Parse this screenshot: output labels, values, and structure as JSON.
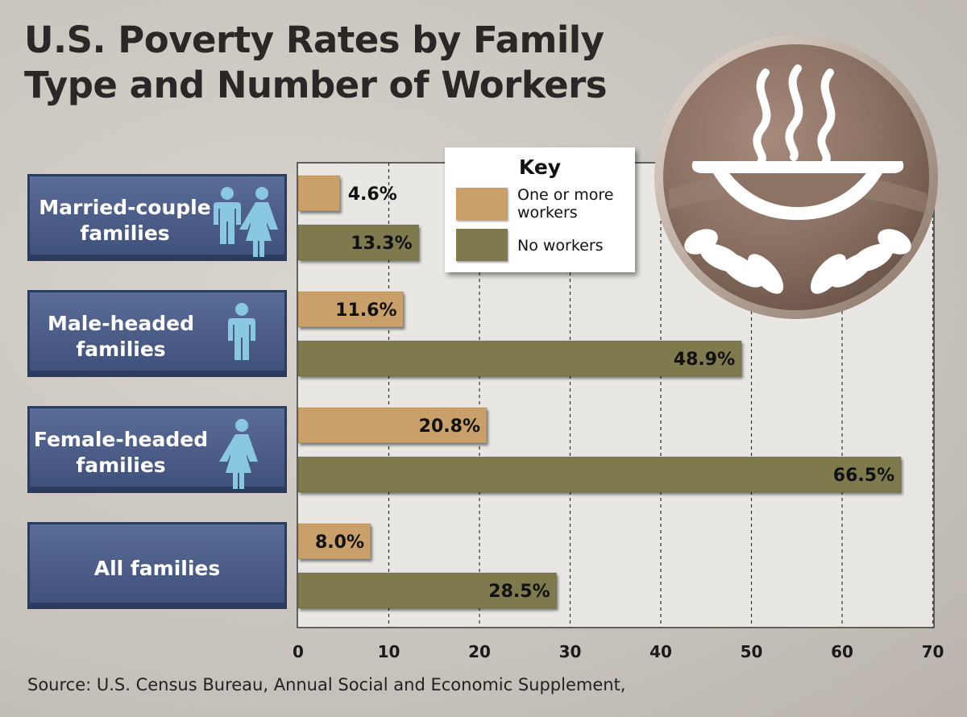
{
  "title": {
    "line1": "U.S. Poverty Rates by Family",
    "line2": "Type and Number of Workers"
  },
  "source": "Source: U.S. Census Bureau, Annual Social and Economic Supplement,",
  "key": {
    "title": "Key",
    "one_or_more": "One or more workers",
    "no_workers": "No workers"
  },
  "colors": {
    "one_or_more": "#c9a069",
    "no_workers": "#7f7a4e",
    "category_box": "#4a5c87",
    "category_box_edge": "#2c3a5e",
    "person_icon": "#89c8e0",
    "plot_bg": "#e9e7e3",
    "emblem": "#8c7365"
  },
  "icons": [
    "man-icon",
    "woman-icon",
    "soup-bowl-hands-icon"
  ],
  "chart_data": {
    "type": "bar",
    "orientation": "horizontal",
    "categories": [
      {
        "label": "Married-couple families",
        "line1": "Married-couple",
        "line2": "families",
        "icons": [
          "man",
          "woman"
        ]
      },
      {
        "label": "Male-headed families",
        "line1": "Male-headed",
        "line2": "families",
        "icons": [
          "man"
        ]
      },
      {
        "label": "Female-headed families",
        "line1": "Female-headed",
        "line2": "families",
        "icons": [
          "woman"
        ]
      },
      {
        "label": "All families",
        "line1": "All families",
        "line2": "",
        "icons": []
      }
    ],
    "series": [
      {
        "name": "One or more workers",
        "values": [
          4.6,
          11.6,
          20.8,
          8.0
        ],
        "labels": [
          "4.6%",
          "11.6%",
          "20.8%",
          "8.0%"
        ]
      },
      {
        "name": "No workers",
        "values": [
          13.3,
          48.9,
          66.5,
          28.5
        ],
        "labels": [
          "13.3%",
          "48.9%",
          "66.5%",
          "28.5%"
        ]
      }
    ],
    "xlim": [
      0,
      70
    ],
    "xticks": [
      0,
      10,
      20,
      30,
      40,
      50,
      60,
      70
    ],
    "grid": "vertical dashed",
    "legend": "top-center"
  }
}
